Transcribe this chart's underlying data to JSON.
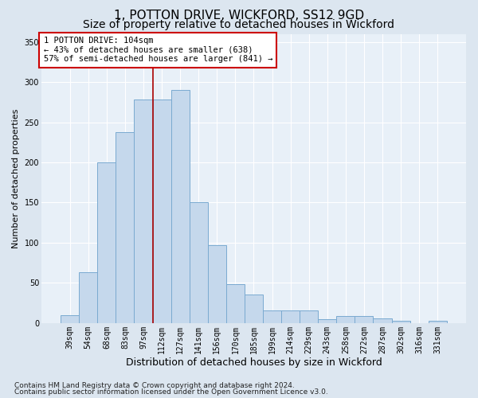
{
  "title": "1, POTTON DRIVE, WICKFORD, SS12 9GD",
  "subtitle": "Size of property relative to detached houses in Wickford",
  "xlabel": "Distribution of detached houses by size in Wickford",
  "ylabel": "Number of detached properties",
  "categories": [
    "39sqm",
    "54sqm",
    "68sqm",
    "83sqm",
    "97sqm",
    "112sqm",
    "127sqm",
    "141sqm",
    "156sqm",
    "170sqm",
    "185sqm",
    "199sqm",
    "214sqm",
    "229sqm",
    "243sqm",
    "258sqm",
    "272sqm",
    "287sqm",
    "302sqm",
    "316sqm",
    "331sqm"
  ],
  "values": [
    10,
    63,
    200,
    238,
    278,
    278,
    290,
    150,
    97,
    48,
    36,
    16,
    16,
    16,
    5,
    9,
    9,
    6,
    3,
    0,
    3
  ],
  "bar_color": "#c5d8ec",
  "bar_edge_color": "#7aaad0",
  "vline_color": "#aa0000",
  "vline_pos": 4.5,
  "annotation_line1": "1 POTTON DRIVE: 104sqm",
  "annotation_line2": "← 43% of detached houses are smaller (638)",
  "annotation_line3": "57% of semi-detached houses are larger (841) →",
  "annotation_box_facecolor": "#ffffff",
  "annotation_box_edgecolor": "#cc0000",
  "bg_color": "#dce6f0",
  "plot_bg_color": "#e8f0f8",
  "footer1": "Contains HM Land Registry data © Crown copyright and database right 2024.",
  "footer2": "Contains public sector information licensed under the Open Government Licence v3.0.",
  "ylim": [
    0,
    360
  ],
  "yticks": [
    0,
    50,
    100,
    150,
    200,
    250,
    300,
    350
  ],
  "title_fontsize": 11,
  "subtitle_fontsize": 10,
  "xlabel_fontsize": 9,
  "ylabel_fontsize": 8,
  "tick_fontsize": 7,
  "annotation_fontsize": 7.5,
  "footer_fontsize": 6.5
}
